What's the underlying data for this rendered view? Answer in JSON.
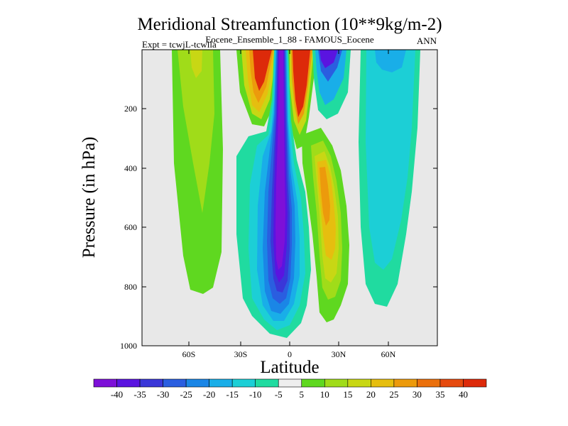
{
  "chart_data": {
    "type": "contour",
    "title": "Meridional Streamfunction (10**9kg/m-2)",
    "subtitle": "Eocene_Ensemble_1_88 - FAMOUS_Eocene",
    "left_label": "Expt = tcwjL-tcwlla",
    "right_label": "ANN",
    "xlabel": "Latitude",
    "ylabel": "Pressure (in hPa)",
    "xlim": [
      -90,
      90
    ],
    "ylim": [
      1000,
      0
    ],
    "x_ticks": [
      {
        "value": -60,
        "label": "60S"
      },
      {
        "value": -30,
        "label": "30S"
      },
      {
        "value": 0,
        "label": "0"
      },
      {
        "value": 30,
        "label": "30N"
      },
      {
        "value": 60,
        "label": "60N"
      }
    ],
    "y_ticks": [
      {
        "value": 200,
        "label": "200"
      },
      {
        "value": 400,
        "label": "400"
      },
      {
        "value": 600,
        "label": "600"
      },
      {
        "value": 800,
        "label": "800"
      },
      {
        "value": 1000,
        "label": "1000"
      }
    ],
    "background_color": "#e8e8e8",
    "colorbar": {
      "labels": [
        "-40",
        "-35",
        "-30",
        "-25",
        "-20",
        "-15",
        "-10",
        "-5",
        "5",
        "10",
        "15",
        "20",
        "25",
        "30",
        "35",
        "40"
      ],
      "colors": [
        "#7d10d8",
        "#5a14e0",
        "#3a37d8",
        "#2a5ee0",
        "#1a86e6",
        "#19aee8",
        "#1ccfd6",
        "#20dba0",
        "#eeeeee",
        "#5fd820",
        "#a0dc19",
        "#c8d714",
        "#e6be0f",
        "#ec9a0c",
        "#eb700c",
        "#e64a0e",
        "#dd2a0a"
      ]
    },
    "features": [
      {
        "name": "southern-subtropical-cell",
        "lat_range": [
          -72,
          -45
        ],
        "p_range": [
          0,
          830
        ],
        "peak_value": 20
      },
      {
        "name": "southern-hadley-upper",
        "lat_range": [
          -24,
          -8
        ],
        "p_range": [
          0,
          190
        ],
        "peak_value": 40
      },
      {
        "name": "equatorial-negative-cell",
        "lat_range": [
          -25,
          10
        ],
        "p_range": [
          0,
          975
        ],
        "peak_value": -40
      },
      {
        "name": "northern-hadley-upper",
        "lat_range": [
          0,
          12
        ],
        "p_range": [
          0,
          180
        ],
        "peak_value": 40
      },
      {
        "name": "northern-upper-negative",
        "lat_range": [
          16,
          30
        ],
        "p_range": [
          0,
          160
        ],
        "peak_value": -35
      },
      {
        "name": "northern-positive-cell",
        "lat_range": [
          12,
          34
        ],
        "p_range": [
          170,
          920
        ],
        "peak_value": 25
      },
      {
        "name": "northern-high-lat-negative",
        "lat_range": [
          40,
          72
        ],
        "p_range": [
          0,
          870
        ],
        "peak_value": -15
      }
    ]
  }
}
